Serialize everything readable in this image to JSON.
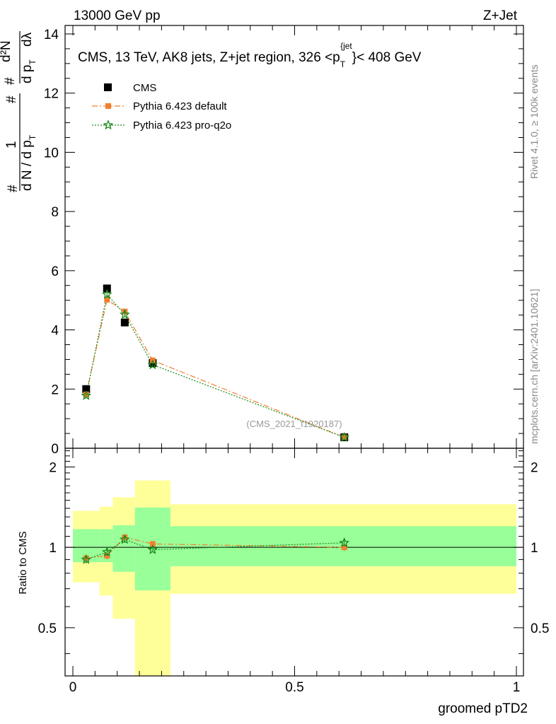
{
  "header": {
    "left": "13000 GeV pp",
    "right": "Z+Jet"
  },
  "side_labels": {
    "rivet": "Rivet 4.1.0, ≥ 100k events",
    "mcplots": "mcplots.cern.ch [arXiv:2401.10621]"
  },
  "watermark": "(CMS_2021_I1920187)",
  "chart_data": [
    {
      "type": "line",
      "title": "CMS, 13 TeV, AK8 jets, Z+jet region, 326 <p_T^{jet}< 408 GeV",
      "title_parts": {
        "main": "CMS, 13 TeV, AK8 jets, Z+jet region, 326 <p",
        "sub": "T",
        "sup": "{jet",
        "tail": "}< 408 GeV"
      },
      "xlabel": "groomed pTD2",
      "ylabel_parts": {
        "hash": "#",
        "one": "1",
        "den": "d N / d p",
        "den_sub": "T",
        "num": "d²N",
        "hash2": "#",
        "hash3": "#",
        "dp": "d p",
        "dp_sub": "T",
        "dl": "dλ"
      },
      "xlim": [
        0,
        1
      ],
      "ylim": [
        0,
        14
      ],
      "yticks": [
        0,
        2,
        4,
        6,
        8,
        10,
        12,
        14
      ],
      "xticks": [
        0,
        0.5,
        1
      ],
      "legend_position": "top-left",
      "series": [
        {
          "name": "CMS",
          "color": "#000000",
          "marker": "square",
          "x": [
            0.03,
            0.077,
            0.117,
            0.18,
            0.612
          ],
          "y": [
            2.0,
            5.4,
            4.25,
            2.88,
            0.37
          ],
          "yerr": [
            0.04,
            0.06,
            0.05,
            0.04,
            0.02
          ]
        },
        {
          "name": "Pythia 6.423 default",
          "color": "#f08030",
          "marker": "square",
          "dash": "8,3,2,3",
          "x": [
            0.03,
            0.077,
            0.117,
            0.18,
            0.612
          ],
          "y": [
            1.82,
            5.02,
            4.62,
            2.97,
            0.37
          ],
          "yerr": [
            0.05,
            0.1,
            0.09,
            0.06,
            0.02
          ]
        },
        {
          "name": "Pythia 6.423 pro-q2o",
          "color": "#1a8a1a",
          "marker": "star",
          "dash": "2,2",
          "x": [
            0.03,
            0.077,
            0.117,
            0.18,
            0.612
          ],
          "y": [
            1.78,
            5.2,
            4.52,
            2.82,
            0.37
          ],
          "yerr": [
            0.05,
            0.1,
            0.09,
            0.06,
            0.02
          ]
        }
      ]
    },
    {
      "type": "line",
      "ylabel": "Ratio to CMS",
      "xlabel": "groomed pTD2",
      "xlim": [
        0,
        1
      ],
      "ylim": [
        0.33,
        2.35
      ],
      "log_y": true,
      "yticks": [
        0.5,
        1,
        2
      ],
      "ytick_labels": [
        "0.5",
        "1",
        "2"
      ],
      "xticks": [
        0,
        0.5,
        1
      ],
      "xtick_labels": [
        "0",
        "0.5",
        "1"
      ],
      "bands": [
        {
          "x0": 0.0,
          "x1": 0.06,
          "inner": [
            0.88,
            1.17
          ],
          "outer": [
            0.74,
            1.37
          ]
        },
        {
          "x0": 0.06,
          "x1": 0.09,
          "inner": [
            0.88,
            1.17
          ],
          "outer": [
            0.66,
            1.42
          ]
        },
        {
          "x0": 0.09,
          "x1": 0.14,
          "inner": [
            0.81,
            1.21
          ],
          "outer": [
            0.54,
            1.54
          ]
        },
        {
          "x0": 0.14,
          "x1": 0.22,
          "inner": [
            0.69,
            1.41
          ],
          "outer": [
            0.33,
            1.78
          ]
        },
        {
          "x0": 0.22,
          "x1": 1.0,
          "inner": [
            0.85,
            1.2
          ],
          "outer": [
            0.67,
            1.45
          ]
        }
      ],
      "series": [
        {
          "name": "Pythia 6.423 default",
          "color": "#f08030",
          "marker": "square",
          "dash": "8,3,2,3",
          "x": [
            0.03,
            0.077,
            0.117,
            0.18,
            0.612
          ],
          "y": [
            0.91,
            0.93,
            1.09,
            1.03,
            1.0
          ],
          "yerr": [
            0.03,
            0.03,
            0.03,
            0.02,
            0.03
          ]
        },
        {
          "name": "Pythia 6.423 pro-q2o",
          "color": "#1a8a1a",
          "marker": "star",
          "dash": "2,2",
          "x": [
            0.03,
            0.077,
            0.117,
            0.18,
            0.612
          ],
          "y": [
            0.9,
            0.96,
            1.07,
            0.98,
            1.04
          ],
          "yerr": [
            0.03,
            0.03,
            0.03,
            0.02,
            0.03
          ]
        }
      ]
    }
  ]
}
